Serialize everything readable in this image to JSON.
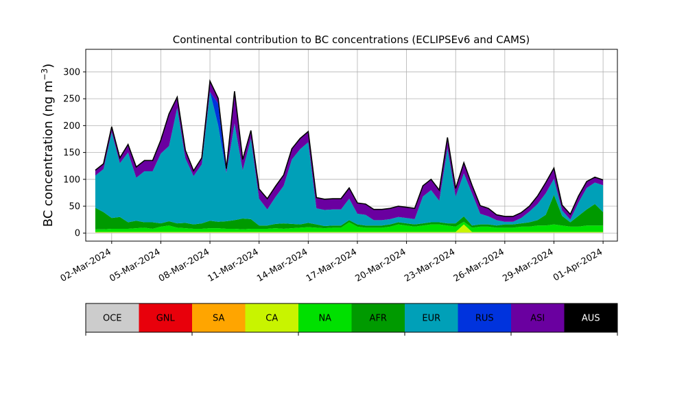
{
  "chart_data": {
    "type": "area",
    "stacked": true,
    "title": "Continental contribution to BC concentrations (ECLIPSEv6 and CAMS)",
    "xlabel": "",
    "ylabel": "BC concentration (ng m",
    "ylabel_superscript": "−3",
    "ylabel_close": ")",
    "xlim": [
      "2024-02-29T10:00",
      "2024-04-01T21:00"
    ],
    "ylim": [
      -15,
      342
    ],
    "yticks": [
      0,
      50,
      100,
      150,
      200,
      250,
      300
    ],
    "xtick_labels": [
      "02-Mar-2024",
      "05-Mar-2024",
      "08-Mar-2024",
      "11-Mar-2024",
      "14-Mar-2024",
      "17-Mar-2024",
      "20-Mar-2024",
      "23-Mar-2024",
      "26-Mar-2024",
      "29-Mar-2024",
      "01-Apr-2024"
    ],
    "xticks": [
      "2024-03-02",
      "2024-03-05",
      "2024-03-08",
      "2024-03-11",
      "2024-03-14",
      "2024-03-17",
      "2024-03-20",
      "2024-03-23",
      "2024-03-26",
      "2024-03-29",
      "2024-04-01"
    ],
    "grid": true,
    "legend_position": "below",
    "x": [
      "2024-03-01T00:00",
      "2024-03-01T12:00",
      "2024-03-02T00:00",
      "2024-03-02T12:00",
      "2024-03-03T00:00",
      "2024-03-03T12:00",
      "2024-03-04T00:00",
      "2024-03-04T12:00",
      "2024-03-05T00:00",
      "2024-03-05T12:00",
      "2024-03-06T00:00",
      "2024-03-06T12:00",
      "2024-03-07T00:00",
      "2024-03-07T12:00",
      "2024-03-08T00:00",
      "2024-03-08T12:00",
      "2024-03-09T00:00",
      "2024-03-09T12:00",
      "2024-03-10T00:00",
      "2024-03-10T12:00",
      "2024-03-11T00:00",
      "2024-03-11T12:00",
      "2024-03-12T00:00",
      "2024-03-12T12:00",
      "2024-03-13T00:00",
      "2024-03-13T12:00",
      "2024-03-14T00:00",
      "2024-03-14T12:00",
      "2024-03-15T00:00",
      "2024-03-15T12:00",
      "2024-03-16T00:00",
      "2024-03-16T12:00",
      "2024-03-17T00:00",
      "2024-03-17T12:00",
      "2024-03-18T00:00",
      "2024-03-18T12:00",
      "2024-03-19T00:00",
      "2024-03-19T12:00",
      "2024-03-20T00:00",
      "2024-03-20T12:00",
      "2024-03-21T00:00",
      "2024-03-21T12:00",
      "2024-03-22T00:00",
      "2024-03-22T12:00",
      "2024-03-23T00:00",
      "2024-03-23T12:00",
      "2024-03-24T00:00",
      "2024-03-24T12:00",
      "2024-03-25T00:00",
      "2024-03-25T12:00",
      "2024-03-26T00:00",
      "2024-03-26T12:00",
      "2024-03-27T00:00",
      "2024-03-27T12:00",
      "2024-03-28T00:00",
      "2024-03-28T12:00",
      "2024-03-29T00:00",
      "2024-03-29T12:00",
      "2024-03-30T00:00",
      "2024-03-30T12:00",
      "2024-03-31T00:00",
      "2024-03-31T12:00",
      "2024-04-01T00:00"
    ],
    "series": [
      {
        "name": "OCE",
        "color": "#cccccc",
        "values": [
          1,
          1,
          1,
          1,
          1,
          1,
          1,
          1,
          1,
          1,
          1,
          1,
          1,
          1,
          1,
          1,
          1,
          1,
          1,
          1,
          1,
          1,
          1,
          1,
          1,
          1,
          1,
          1,
          1,
          1,
          1,
          1,
          1,
          1,
          1,
          1,
          1,
          1,
          1,
          1,
          1,
          1,
          1,
          1,
          1,
          1,
          1,
          1,
          1,
          1,
          1,
          1,
          1,
          1,
          1,
          1,
          1,
          1,
          1,
          1,
          1,
          1,
          1
        ]
      },
      {
        "name": "GNL",
        "color": "#e8000b",
        "values": [
          0,
          0,
          0,
          0,
          0,
          0,
          0,
          0,
          0,
          0,
          0,
          0,
          0,
          0,
          0,
          0,
          0,
          0,
          0,
          0,
          0,
          0,
          0,
          0,
          0,
          0,
          0,
          0,
          0,
          0,
          0,
          0,
          0,
          0,
          0,
          0,
          0,
          0,
          0,
          0,
          0,
          0,
          0,
          0,
          0,
          0,
          0,
          0,
          0,
          0,
          0,
          0,
          0,
          0,
          0,
          0,
          0,
          0,
          0,
          0,
          0,
          0,
          0
        ]
      },
      {
        "name": "SA",
        "color": "#ffa500",
        "values": [
          0,
          0,
          0,
          0,
          0,
          0,
          0,
          0,
          0,
          0,
          0,
          0,
          0,
          0,
          0,
          0,
          0,
          0,
          0,
          0,
          0,
          0,
          0,
          0,
          0,
          0,
          0,
          0,
          0,
          0,
          0,
          0,
          0,
          0,
          0,
          0,
          0,
          0,
          0,
          0,
          0,
          0,
          0,
          0,
          0,
          0,
          0,
          0,
          0,
          0,
          0,
          0,
          0,
          0,
          0,
          0,
          0,
          0,
          0,
          0,
          0,
          0,
          0
        ]
      },
      {
        "name": "CA",
        "color": "#c8f400",
        "values": [
          1,
          1,
          1,
          1,
          1,
          1,
          1,
          1,
          1,
          1,
          1,
          1,
          1,
          1,
          1,
          1,
          1,
          1,
          1,
          1,
          1,
          1,
          1,
          1,
          1,
          1,
          1,
          1,
          1,
          1,
          1,
          1,
          1,
          1,
          1,
          1,
          1,
          1,
          1,
          1,
          1,
          1,
          1,
          1,
          1,
          15,
          1,
          1,
          1,
          1,
          1,
          1,
          1,
          1,
          1,
          1,
          1,
          1,
          1,
          1,
          1,
          1,
          1
        ]
      },
      {
        "name": "NA",
        "color": "#00e000",
        "values": [
          5,
          5,
          6,
          6,
          6,
          7,
          8,
          6,
          10,
          12,
          8,
          7,
          6,
          6,
          7,
          7,
          6,
          6,
          5,
          6,
          6,
          6,
          7,
          6,
          7,
          8,
          9,
          8,
          7,
          8,
          8,
          18,
          10,
          8,
          8,
          8,
          10,
          14,
          12,
          10,
          12,
          14,
          14,
          12,
          10,
          5,
          8,
          10,
          10,
          8,
          8,
          8,
          10,
          10,
          12,
          12,
          14,
          12,
          10,
          10,
          12,
          12,
          12
        ]
      },
      {
        "name": "AFR",
        "color": "#009a00",
        "values": [
          40,
          32,
          20,
          22,
          12,
          14,
          10,
          12,
          6,
          8,
          8,
          10,
          8,
          10,
          14,
          12,
          14,
          16,
          20,
          18,
          6,
          6,
          8,
          10,
          8,
          6,
          8,
          6,
          4,
          4,
          4,
          4,
          4,
          4,
          4,
          4,
          4,
          4,
          4,
          4,
          4,
          4,
          4,
          4,
          6,
          10,
          4,
          4,
          4,
          4,
          6,
          6,
          6,
          8,
          10,
          20,
          55,
          18,
          8,
          20,
          30,
          40,
          25
        ]
      },
      {
        "name": "EUR",
        "color": "#00a0b8",
        "values": [
          60,
          80,
          160,
          100,
          130,
          80,
          95,
          95,
          130,
          140,
          215,
          120,
          90,
          110,
          240,
          180,
          90,
          180,
          90,
          150,
          50,
          30,
          50,
          70,
          120,
          140,
          150,
          30,
          30,
          30,
          30,
          40,
          20,
          20,
          10,
          10,
          10,
          10,
          10,
          10,
          50,
          60,
          40,
          140,
          50,
          80,
          60,
          20,
          15,
          10,
          5,
          5,
          10,
          20,
          30,
          40,
          30,
          10,
          5,
          25,
          40,
          40,
          50
        ]
      },
      {
        "name": "RUS",
        "color": "#0033dd",
        "values": [
          0,
          0,
          0,
          0,
          0,
          0,
          0,
          0,
          0,
          0,
          0,
          0,
          0,
          0,
          0,
          40,
          0,
          0,
          0,
          0,
          0,
          0,
          0,
          0,
          0,
          0,
          0,
          0,
          0,
          0,
          0,
          0,
          0,
          0,
          0,
          0,
          0,
          0,
          0,
          0,
          0,
          0,
          0,
          0,
          0,
          0,
          0,
          0,
          0,
          0,
          0,
          0,
          0,
          0,
          0,
          0,
          0,
          0,
          0,
          0,
          0,
          0,
          0
        ]
      },
      {
        "name": "ASI",
        "color": "#6a00a0",
        "values": [
          10,
          10,
          10,
          10,
          15,
          20,
          20,
          20,
          25,
          60,
          20,
          15,
          10,
          12,
          20,
          10,
          8,
          60,
          20,
          15,
          18,
          20,
          20,
          20,
          20,
          20,
          20,
          20,
          20,
          20,
          20,
          20,
          20,
          20,
          20,
          20,
          20,
          20,
          20,
          20,
          20,
          20,
          20,
          20,
          15,
          20,
          15,
          15,
          15,
          10,
          10,
          10,
          10,
          10,
          15,
          20,
          20,
          10,
          10,
          12,
          12,
          10,
          10
        ]
      },
      {
        "name": "AUS",
        "color": "#000000",
        "values": [
          0,
          0,
          0,
          0,
          0,
          0,
          0,
          0,
          0,
          0,
          0,
          0,
          0,
          0,
          0,
          0,
          0,
          0,
          0,
          0,
          0,
          0,
          0,
          0,
          0,
          0,
          0,
          0,
          0,
          0,
          0,
          0,
          0,
          0,
          0,
          0,
          0,
          0,
          0,
          0,
          0,
          0,
          0,
          0,
          0,
          0,
          0,
          0,
          0,
          0,
          0,
          0,
          0,
          0,
          0,
          0,
          0,
          0,
          0,
          0,
          0,
          0,
          0
        ]
      }
    ]
  }
}
